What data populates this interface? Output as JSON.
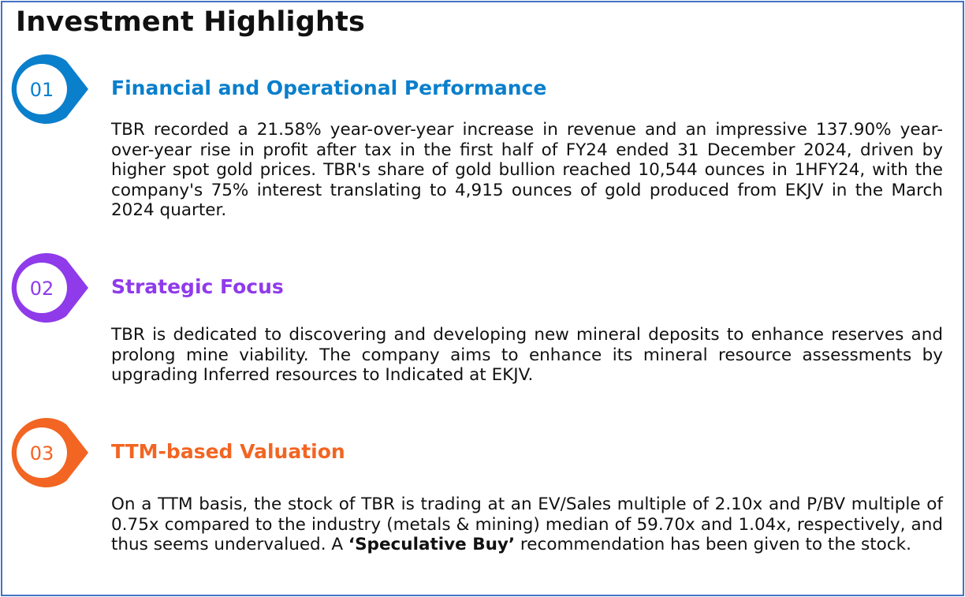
{
  "title": "Investment Highlights",
  "colors": {
    "border": "#4472c4",
    "s1": "#0a7fcc",
    "s2": "#8f3bea",
    "s3": "#f26522"
  },
  "sections": [
    {
      "number": "01",
      "heading": "Financial and Operational Performance",
      "body": "TBR recorded a 21.58% year-over-year increase in revenue and an impressive 137.90% year-over-year rise in profit after tax in the first half of FY24 ended 31 December 2024, driven by higher spot gold prices. TBR's share of gold bullion reached 10,544 ounces in 1HFY24, with the company's 75% interest translating to 4,915 ounces of gold produced from EKJV in the March 2024 quarter."
    },
    {
      "number": "02",
      "heading": "Strategic Focus",
      "body": "TBR is dedicated to discovering and developing new mineral deposits to enhance reserves and prolong mine viability. The company aims to enhance its mineral resource assessments by upgrading Inferred resources to Indicated at EKJV."
    },
    {
      "number": "03",
      "heading": "TTM-based Valuation",
      "body_pre": "On a TTM basis, the stock of TBR is trading at an EV/Sales multiple of 2.10x and P/BV multiple of 0.75x compared to the industry (metals & mining) median of 59.70x and 1.04x, respectively, and thus seems undervalued. A ",
      "body_bold": "‘Speculative Buy’",
      "body_post": " recommendation has been given to the stock."
    }
  ]
}
